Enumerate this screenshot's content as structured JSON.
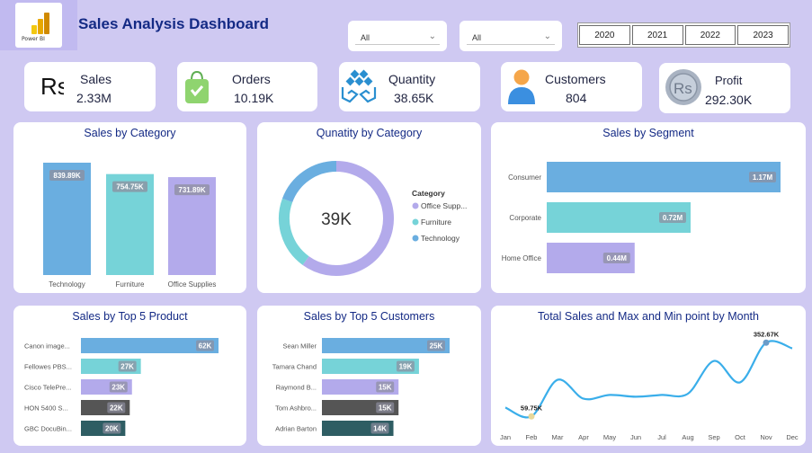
{
  "header": {
    "title": "Sales Analysis Dashboard",
    "logo_label": "Power BI",
    "filters": [
      {
        "value": "All"
      },
      {
        "value": "All"
      }
    ],
    "years": [
      "2020",
      "2021",
      "2022",
      "2023"
    ]
  },
  "kpis": [
    {
      "label": "Sales",
      "value": "2.33M",
      "icon": "rupee-icon"
    },
    {
      "label": "Orders",
      "value": "10.19K",
      "icon": "shopping-bag-icon"
    },
    {
      "label": "Quantity",
      "value": "38.65K",
      "icon": "hands-boxes-icon"
    },
    {
      "label": "Customers",
      "value": "804",
      "icon": "person-icon"
    },
    {
      "label": "Profit",
      "value": "292.30K",
      "icon": "rupee-coin-icon"
    }
  ],
  "colors": {
    "blue": "#6aaee0",
    "teal": "#76d3d8",
    "purple": "#b3aaeb",
    "dark_gray": "#555555",
    "dark_teal": "#2e5d63",
    "title": "#142a85"
  },
  "chart_data": [
    {
      "type": "bar",
      "title": "Sales by Category",
      "categories": [
        "Technology",
        "Furniture",
        "Office Supplies"
      ],
      "values": [
        839.89,
        754.75,
        731.89
      ],
      "labels": [
        "839.89K",
        "754.75K",
        "731.89K"
      ]
    },
    {
      "type": "pie",
      "title": "Qunatity by Category",
      "center_label": "39K",
      "legend_title": "Category",
      "legend_placement": "right",
      "categories": [
        "Office Supp...",
        "Furniture",
        "Technology"
      ],
      "values": [
        23.2,
        8.0,
        7.5
      ]
    },
    {
      "type": "bar",
      "orientation": "horizontal",
      "title": "Sales by Segment",
      "categories": [
        "Consumer",
        "Corporate",
        "Home Office"
      ],
      "values": [
        1.17,
        0.72,
        0.44
      ],
      "labels": [
        "1.17M",
        "0.72M",
        "0.44M"
      ]
    },
    {
      "type": "bar",
      "orientation": "horizontal",
      "title": "Sales by Top 5 Product",
      "categories": [
        "Canon image...",
        "Fellowes PBS...",
        "Cisco TelePre...",
        "HON 5400 S...",
        "GBC DocuBin..."
      ],
      "values": [
        62,
        27,
        23,
        22,
        20
      ],
      "labels": [
        "62K",
        "27K",
        "23K",
        "22K",
        "20K"
      ]
    },
    {
      "type": "bar",
      "orientation": "horizontal",
      "title": "Sales by Top 5 Customers",
      "categories": [
        "Sean Miller",
        "Tamara Chand",
        "Raymond B...",
        "Tom Ashbro...",
        "Adrian Barton"
      ],
      "values": [
        25,
        19,
        15,
        15,
        14
      ],
      "labels": [
        "25K",
        "19K",
        "15K",
        "15K",
        "14K"
      ]
    },
    {
      "type": "line",
      "title": "Total Sales and Max and Min point by Month",
      "x": [
        "Jan",
        "Feb",
        "Mar",
        "Apr",
        "May",
        "Jun",
        "Jul",
        "Aug",
        "Sep",
        "Oct",
        "Nov",
        "Dec"
      ],
      "y": [
        95,
        59.75,
        205,
        130,
        145,
        138,
        145,
        150,
        280,
        195,
        352.67,
        330
      ],
      "ylim": [
        0,
        400
      ],
      "annotations": [
        {
          "x": "Feb",
          "label": "59.75K"
        },
        {
          "x": "Nov",
          "label": "352.67K"
        }
      ]
    }
  ]
}
